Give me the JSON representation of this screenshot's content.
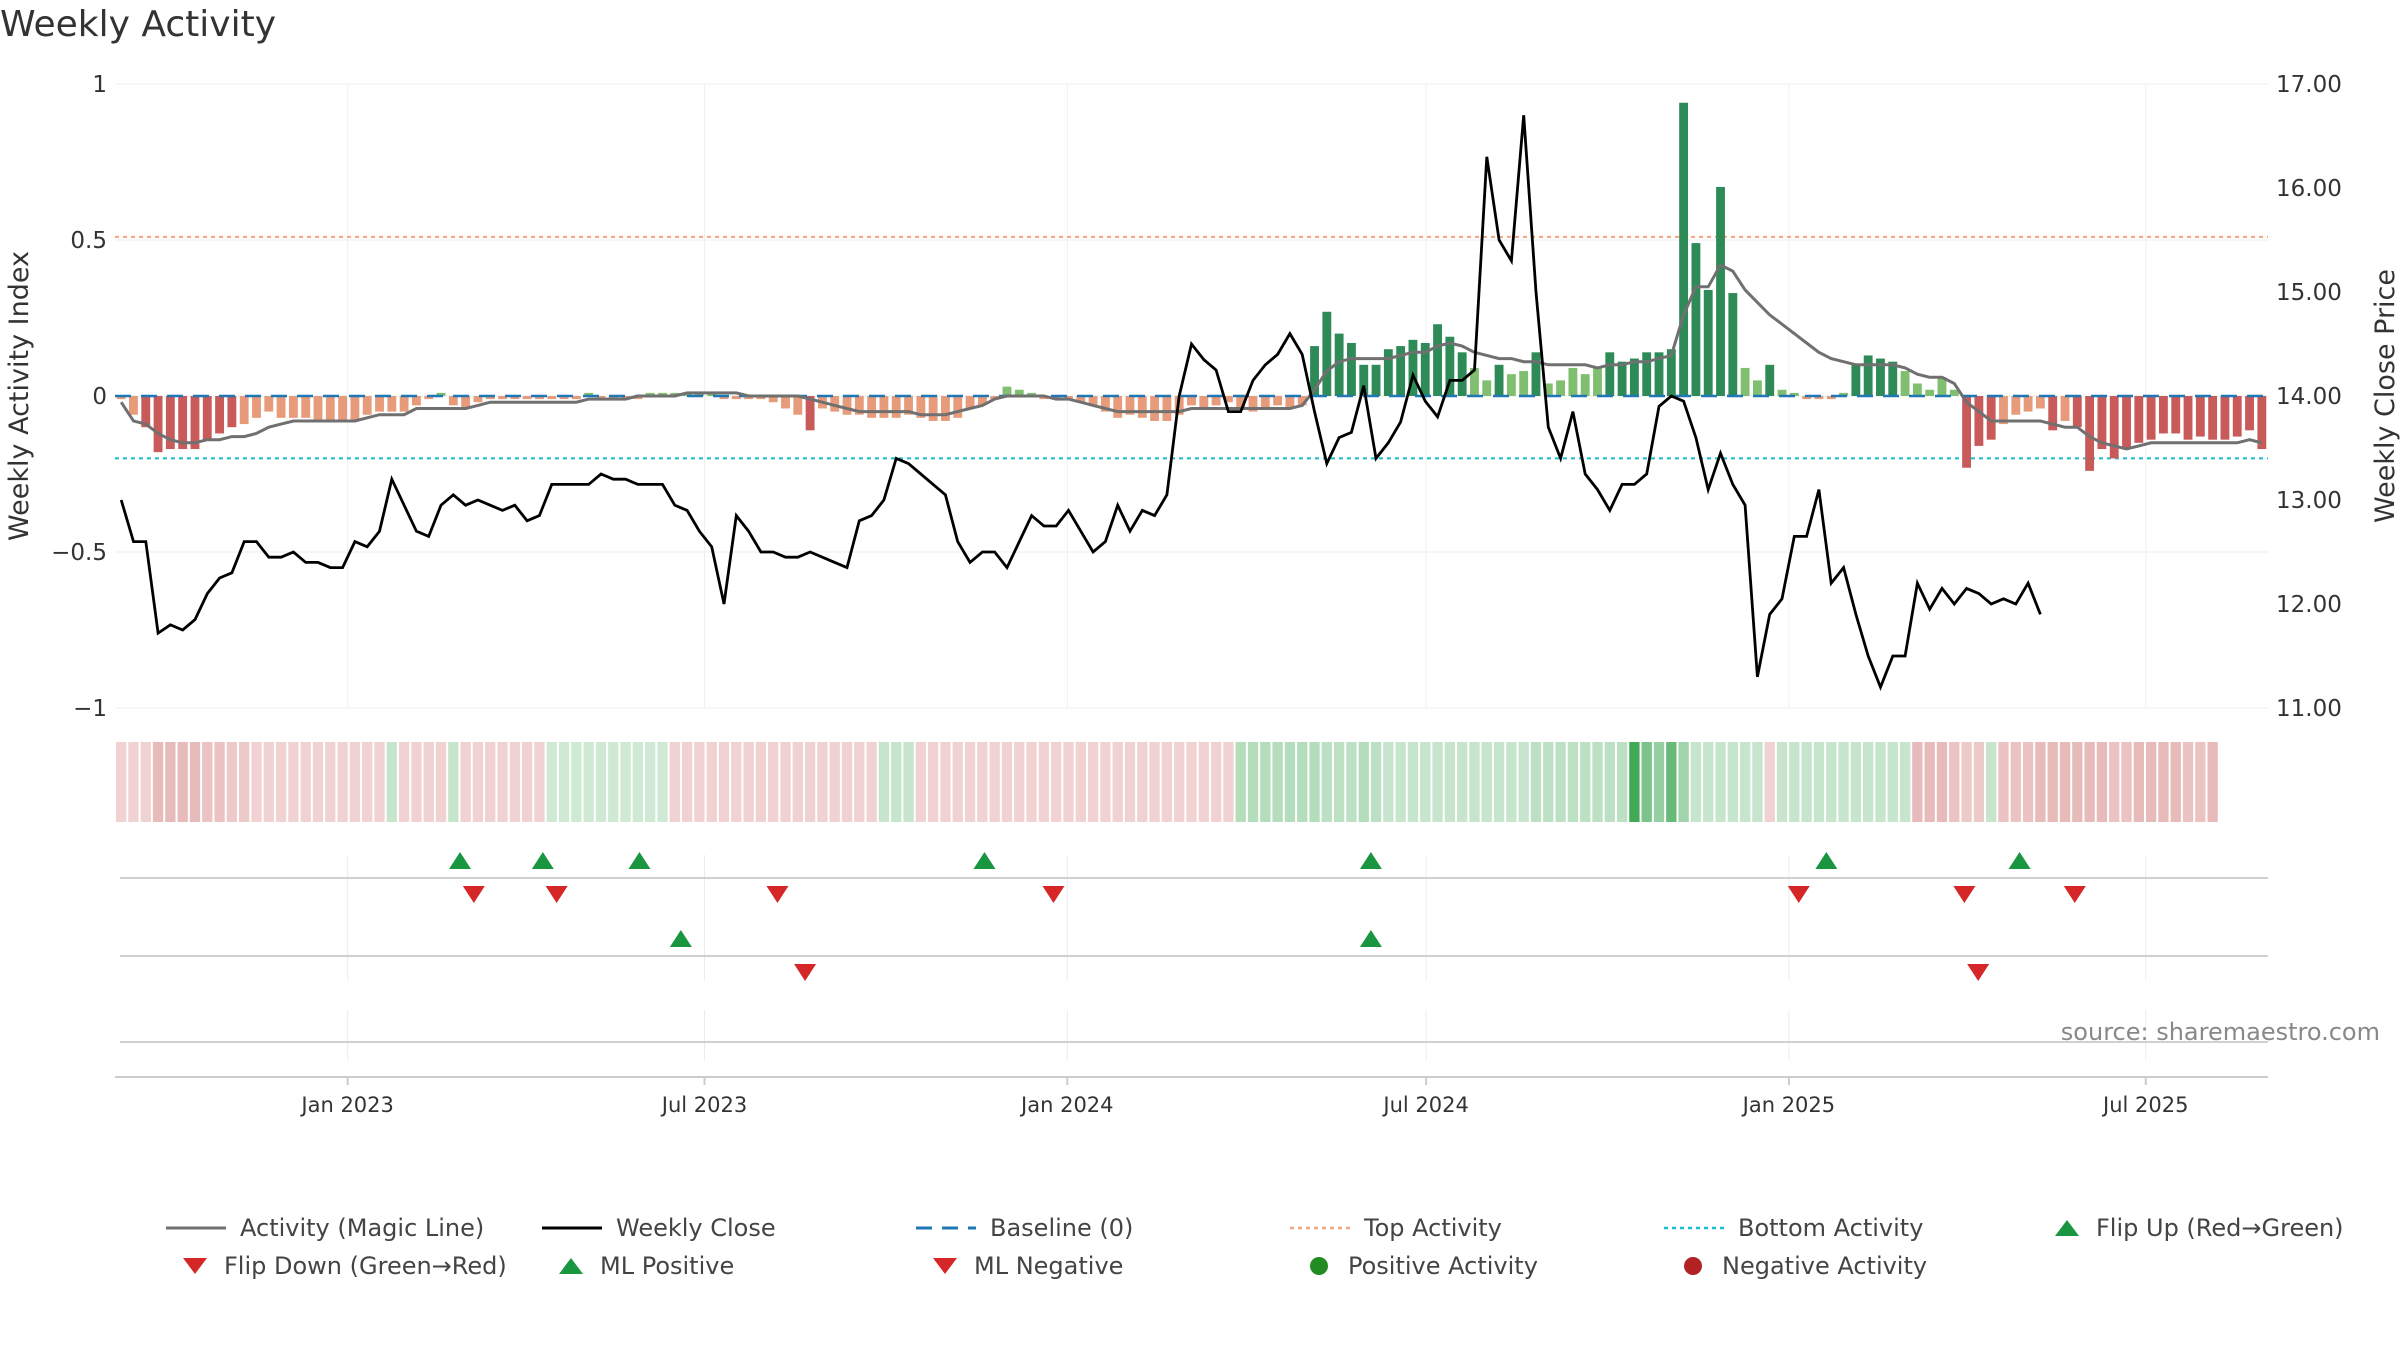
{
  "title": "Weekly Activity",
  "chart_data": {
    "type": "bar",
    "title": "Weekly Activity",
    "ylabel_left": "Weekly Activity Index",
    "ylabel_right": "Weekly Close Price",
    "left_ylim": [
      -1,
      1
    ],
    "right_ylim": [
      11.0,
      17.0
    ],
    "left_yticks": [
      {
        "value": 1,
        "label": "1"
      },
      {
        "value": 0.5,
        "label": "0.5"
      },
      {
        "value": 0,
        "label": "0"
      },
      {
        "value": -0.5,
        "label": "−0.5"
      },
      {
        "value": -1,
        "label": "−1"
      }
    ],
    "right_yticks": [
      "17.00",
      "16.00",
      "15.00",
      "14.00",
      "13.00",
      "12.00",
      "11.00"
    ],
    "x_ticks": [
      "Jan 2023",
      "Jul 2023",
      "Jan 2024",
      "Jul 2024",
      "Jan 2025",
      "Jul 2025"
    ],
    "x_start": "2022-09-05",
    "x_end": "2025-09-01",
    "top_activity": 0.51,
    "bottom_activity": -0.2,
    "source": "source: sharemaestro.com",
    "colors": {
      "pos_strong": "#2e8b57",
      "pos_weak": "#7fbf6f",
      "neg_strong": "#c85a5a",
      "neg_weak": "#e89b7a",
      "magic_line": "#707070",
      "close_line": "#000000",
      "baseline": "#1f77b4",
      "top_line": "#f4a582",
      "bottom_line": "#17becf",
      "flip_up": "#1a9641",
      "flip_down": "#d62728",
      "pos_dot": "#228b22",
      "neg_dot": "#b22222"
    },
    "activity_index": [
      -0.01,
      -0.06,
      -0.1,
      -0.18,
      -0.17,
      -0.17,
      -0.17,
      -0.14,
      -0.12,
      -0.1,
      -0.09,
      -0.07,
      -0.05,
      -0.07,
      -0.07,
      -0.07,
      -0.08,
      -0.08,
      -0.08,
      -0.08,
      -0.06,
      -0.05,
      -0.05,
      -0.05,
      -0.03,
      -0.01,
      0.01,
      -0.03,
      -0.04,
      -0.02,
      -0.01,
      -0.01,
      -0.01,
      -0.01,
      -0.01,
      -0.01,
      -0.01,
      -0.01,
      0.01,
      -0.01,
      -0.01,
      -0.01,
      -0.01,
      0.01,
      0.01,
      0.01,
      0.01,
      0.01,
      0.01,
      -0.01,
      -0.01,
      -0.01,
      -0.01,
      -0.02,
      -0.04,
      -0.06,
      -0.11,
      -0.04,
      -0.05,
      -0.06,
      -0.06,
      -0.07,
      -0.07,
      -0.07,
      -0.06,
      -0.07,
      -0.08,
      -0.08,
      -0.07,
      -0.04,
      -0.03,
      -0.01,
      0.03,
      0.02,
      0.01,
      -0.01,
      -0.01,
      -0.01,
      -0.02,
      -0.03,
      -0.05,
      -0.07,
      -0.06,
      -0.07,
      -0.08,
      -0.08,
      -0.06,
      -0.03,
      -0.04,
      -0.03,
      -0.02,
      -0.04,
      -0.05,
      -0.04,
      -0.03,
      -0.04,
      -0.03,
      0.16,
      0.27,
      0.2,
      0.17,
      0.1,
      0.1,
      0.15,
      0.16,
      0.18,
      0.17,
      0.23,
      0.19,
      0.14,
      0.09,
      0.05,
      0.1,
      0.07,
      0.08,
      0.14,
      0.04,
      0.05,
      0.09,
      0.07,
      0.09,
      0.14,
      0.11,
      0.12,
      0.14,
      0.14,
      0.15,
      0.94,
      0.49,
      0.34,
      0.67,
      0.33,
      0.09,
      0.05,
      0.1,
      0.02,
      0.01,
      -0.01,
      -0.01,
      -0.01,
      0.01,
      0.1,
      0.13,
      0.12,
      0.11,
      0.08,
      0.04,
      0.02,
      0.06,
      0.02,
      -0.23,
      -0.16,
      -0.14,
      -0.09,
      -0.06,
      -0.05,
      -0.04,
      -0.11,
      -0.08,
      -0.1,
      -0.24,
      -0.17,
      -0.2,
      -0.17,
      -0.15,
      -0.14,
      -0.12,
      -0.12,
      -0.14,
      -0.13,
      -0.14,
      -0.14,
      -0.13,
      -0.11,
      -0.17
    ],
    "magic_line": [
      -0.02,
      -0.08,
      -0.09,
      -0.12,
      -0.14,
      -0.15,
      -0.15,
      -0.14,
      -0.14,
      -0.13,
      -0.13,
      -0.12,
      -0.1,
      -0.09,
      -0.08,
      -0.08,
      -0.08,
      -0.08,
      -0.08,
      -0.08,
      -0.07,
      -0.06,
      -0.06,
      -0.06,
      -0.04,
      -0.04,
      -0.04,
      -0.04,
      -0.04,
      -0.03,
      -0.02,
      -0.02,
      -0.02,
      -0.02,
      -0.02,
      -0.02,
      -0.02,
      -0.02,
      -0.01,
      -0.01,
      -0.01,
      -0.01,
      0,
      0,
      0,
      0,
      0.01,
      0.01,
      0.01,
      0.01,
      0.01,
      0,
      0,
      0,
      0,
      0,
      -0.01,
      -0.02,
      -0.03,
      -0.04,
      -0.05,
      -0.05,
      -0.05,
      -0.05,
      -0.05,
      -0.06,
      -0.06,
      -0.06,
      -0.05,
      -0.04,
      -0.03,
      -0.01,
      0,
      0,
      0,
      0,
      -0.01,
      -0.01,
      -0.02,
      -0.03,
      -0.04,
      -0.05,
      -0.05,
      -0.05,
      -0.05,
      -0.05,
      -0.05,
      -0.04,
      -0.04,
      -0.04,
      -0.04,
      -0.04,
      -0.04,
      -0.04,
      -0.04,
      -0.04,
      -0.03,
      0.02,
      0.08,
      0.11,
      0.12,
      0.12,
      0.12,
      0.12,
      0.13,
      0.14,
      0.14,
      0.16,
      0.17,
      0.16,
      0.14,
      0.13,
      0.12,
      0.12,
      0.11,
      0.11,
      0.1,
      0.1,
      0.1,
      0.1,
      0.09,
      0.1,
      0.1,
      0.11,
      0.11,
      0.12,
      0.13,
      0.26,
      0.35,
      0.35,
      0.42,
      0.4,
      0.34,
      0.3,
      0.26,
      0.23,
      0.2,
      0.17,
      0.14,
      0.12,
      0.11,
      0.1,
      0.1,
      0.1,
      0.1,
      0.09,
      0.07,
      0.06,
      0.06,
      0.04,
      -0.02,
      -0.05,
      -0.08,
      -0.08,
      -0.08,
      -0.08,
      -0.08,
      -0.09,
      -0.1,
      -0.1,
      -0.13,
      -0.15,
      -0.16,
      -0.17,
      -0.16,
      -0.15,
      -0.15,
      -0.15,
      -0.15,
      -0.15,
      -0.15,
      -0.15,
      -0.15,
      -0.14,
      -0.15
    ],
    "weekly_close": [
      13.0,
      12.6,
      12.6,
      11.72,
      11.8,
      11.75,
      11.85,
      12.1,
      12.25,
      12.3,
      12.6,
      12.6,
      12.45,
      12.45,
      12.5,
      12.4,
      12.4,
      12.35,
      12.35,
      12.6,
      12.55,
      12.7,
      13.2,
      12.95,
      12.7,
      12.65,
      12.95,
      13.05,
      12.95,
      13.0,
      12.95,
      12.9,
      12.95,
      12.8,
      12.85,
      13.15,
      13.15,
      13.15,
      13.15,
      13.25,
      13.2,
      13.2,
      13.15,
      13.15,
      13.15,
      12.95,
      12.9,
      12.7,
      12.55,
      12.0,
      12.85,
      12.7,
      12.5,
      12.5,
      12.45,
      12.45,
      12.5,
      12.45,
      12.4,
      12.35,
      12.8,
      12.85,
      13.0,
      13.4,
      13.35,
      13.25,
      13.15,
      13.05,
      12.6,
      12.4,
      12.5,
      12.5,
      12.35,
      12.6,
      12.85,
      12.75,
      12.75,
      12.9,
      12.7,
      12.5,
      12.6,
      12.95,
      12.7,
      12.9,
      12.85,
      13.05,
      14.0,
      14.5,
      14.35,
      14.25,
      13.85,
      13.85,
      14.15,
      14.3,
      14.4,
      14.6,
      14.4,
      13.85,
      13.35,
      13.6,
      13.65,
      14.1,
      13.4,
      13.55,
      13.75,
      14.2,
      13.95,
      13.8,
      14.15,
      14.15,
      14.25,
      16.3,
      15.5,
      15.3,
      16.7,
      15.0,
      13.7,
      13.4,
      13.85,
      13.25,
      13.1,
      12.9,
      13.15,
      13.15,
      13.25,
      13.9,
      14.0,
      13.95,
      13.6,
      13.1,
      13.45,
      13.15,
      12.95,
      11.3,
      11.9,
      12.05,
      12.65,
      12.65,
      13.1,
      12.2,
      12.35,
      11.9,
      11.5,
      11.2,
      11.5,
      11.5,
      12.2,
      11.95,
      12.15,
      12.0,
      12.15,
      12.1,
      12.0,
      12.05,
      12.0,
      12.2,
      11.9
    ],
    "background_strip": [
      -0.3,
      -0.3,
      -0.3,
      -0.45,
      -0.45,
      -0.45,
      -0.45,
      -0.4,
      -0.4,
      -0.35,
      -0.35,
      -0.3,
      -0.3,
      -0.3,
      -0.3,
      -0.3,
      -0.3,
      -0.3,
      -0.3,
      -0.3,
      -0.3,
      -0.3,
      0.3,
      -0.3,
      -0.3,
      -0.3,
      -0.3,
      0.3,
      -0.3,
      -0.3,
      -0.3,
      -0.3,
      -0.3,
      -0.3,
      -0.3,
      0.25,
      0.25,
      0.25,
      0.25,
      0.25,
      0.25,
      0.25,
      0.25,
      0.25,
      0.25,
      -0.3,
      -0.3,
      -0.3,
      -0.3,
      -0.3,
      -0.3,
      -0.3,
      -0.3,
      -0.3,
      -0.3,
      -0.3,
      -0.3,
      -0.3,
      -0.3,
      -0.3,
      -0.3,
      -0.3,
      0.3,
      0.3,
      0.3,
      -0.3,
      -0.3,
      -0.3,
      -0.3,
      -0.3,
      -0.3,
      -0.3,
      -0.3,
      -0.3,
      -0.3,
      -0.3,
      -0.3,
      -0.3,
      -0.3,
      -0.3,
      -0.3,
      -0.3,
      -0.3,
      -0.3,
      -0.3,
      -0.3,
      -0.3,
      -0.3,
      -0.3,
      -0.3,
      -0.3,
      0.4,
      0.4,
      0.4,
      0.4,
      0.4,
      0.4,
      0.4,
      0.35,
      0.35,
      0.35,
      0.4,
      0.35,
      0.3,
      0.3,
      0.3,
      0.3,
      0.3,
      0.3,
      0.3,
      0.3,
      0.3,
      0.3,
      0.3,
      0.3,
      0.35,
      0.35,
      0.35,
      0.35,
      0.35,
      0.35,
      0.35,
      0.35,
      1.0,
      0.7,
      0.55,
      0.8,
      0.5,
      0.3,
      0.3,
      0.3,
      0.3,
      0.3,
      0.3,
      -0.3,
      0.3,
      0.3,
      0.3,
      0.3,
      0.3,
      0.3,
      0.3,
      0.3,
      0.3,
      0.3,
      0.3,
      -0.45,
      -0.45,
      -0.45,
      -0.4,
      -0.35,
      -0.35,
      0.3,
      -0.4,
      -0.4,
      -0.4,
      -0.45,
      -0.45,
      -0.45,
      -0.45,
      -0.45,
      -0.45,
      -0.4,
      -0.4,
      -0.45,
      -0.45,
      -0.45,
      -0.45,
      -0.4,
      -0.4,
      -0.45
    ],
    "flip_up": [
      "2023-02-27",
      "2023-04-10",
      "2023-05-29",
      "2023-11-20",
      "2024-06-03",
      "2025-01-20",
      "2025-04-28"
    ],
    "flip_down": [
      "2023-03-06",
      "2023-04-17",
      "2023-08-07",
      "2023-12-25",
      "2025-01-06",
      "2025-03-31",
      "2025-05-26"
    ],
    "ml_positive": [
      "2023-06-19",
      "2024-06-03"
    ],
    "ml_negative": [
      "2023-08-21",
      "2025-04-07"
    ],
    "legend": [
      {
        "key": "magic",
        "label": "Activity (Magic Line)"
      },
      {
        "key": "close",
        "label": "Weekly Close"
      },
      {
        "key": "baseline",
        "label": "Baseline (0)"
      },
      {
        "key": "top",
        "label": "Top Activity"
      },
      {
        "key": "bottom",
        "label": "Bottom Activity"
      },
      {
        "key": "flipup",
        "label": "Flip Up (Red→Green)"
      },
      {
        "key": "flipdown",
        "label": "Flip Down (Green→Red)"
      },
      {
        "key": "mlpos",
        "label": "ML Positive"
      },
      {
        "key": "mlneg",
        "label": "ML Negative"
      },
      {
        "key": "posdot",
        "label": "Positive Activity"
      },
      {
        "key": "negdot",
        "label": "Negative Activity"
      }
    ]
  }
}
